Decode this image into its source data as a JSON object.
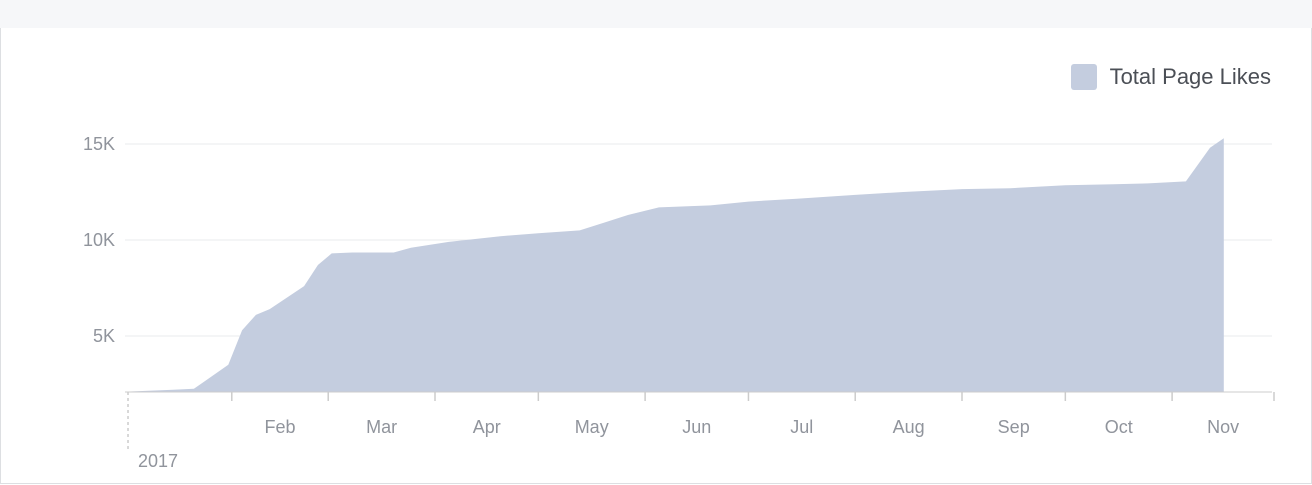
{
  "chart_data": {
    "type": "area",
    "title": "",
    "xlabel": "",
    "ylabel": "",
    "legend": {
      "position": "top-right",
      "label": "Total Page Likes"
    },
    "colors": {
      "area": "#c4cddf",
      "grid": "#e9ebee",
      "axis": "#cccccc",
      "tick_text": "#90949c"
    },
    "grid": true,
    "ylim": [
      0,
      15500
    ],
    "y_ticks": [
      {
        "value": 5000,
        "label": "5K"
      },
      {
        "value": 10000,
        "label": "10K"
      },
      {
        "value": 15000,
        "label": "15K"
      }
    ],
    "x_domain": [
      "2017-01-01",
      "2017-11-30"
    ],
    "x_ticks": [
      {
        "date": "2017-02-01",
        "label": "Feb"
      },
      {
        "date": "2017-03-01",
        "label": "Mar"
      },
      {
        "date": "2017-04-01",
        "label": "Apr"
      },
      {
        "date": "2017-05-01",
        "label": "May"
      },
      {
        "date": "2017-06-01",
        "label": "Jun"
      },
      {
        "date": "2017-07-01",
        "label": "Jul"
      },
      {
        "date": "2017-08-01",
        "label": "Aug"
      },
      {
        "date": "2017-09-01",
        "label": "Sep"
      },
      {
        "date": "2017-10-01",
        "label": "Oct"
      },
      {
        "date": "2017-11-01",
        "label": "Nov"
      }
    ],
    "year_label": "2017",
    "series": [
      {
        "name": "Total Page Likes",
        "points": [
          {
            "x": "2017-01-01",
            "y": 2100
          },
          {
            "x": "2017-01-15",
            "y": 2200
          },
          {
            "x": "2017-01-21",
            "y": 2250
          },
          {
            "x": "2017-01-31",
            "y": 3500
          },
          {
            "x": "2017-02-04",
            "y": 5300
          },
          {
            "x": "2017-02-08",
            "y": 6100
          },
          {
            "x": "2017-02-12",
            "y": 6400
          },
          {
            "x": "2017-02-22",
            "y": 7600
          },
          {
            "x": "2017-02-26",
            "y": 8700
          },
          {
            "x": "2017-03-02",
            "y": 9300
          },
          {
            "x": "2017-03-08",
            "y": 9350
          },
          {
            "x": "2017-03-20",
            "y": 9350
          },
          {
            "x": "2017-03-25",
            "y": 9600
          },
          {
            "x": "2017-04-05",
            "y": 9900
          },
          {
            "x": "2017-04-20",
            "y": 10200
          },
          {
            "x": "2017-05-01",
            "y": 10350
          },
          {
            "x": "2017-05-13",
            "y": 10500
          },
          {
            "x": "2017-05-20",
            "y": 10900
          },
          {
            "x": "2017-05-27",
            "y": 11300
          },
          {
            "x": "2017-06-05",
            "y": 11700
          },
          {
            "x": "2017-06-20",
            "y": 11800
          },
          {
            "x": "2017-07-01",
            "y": 12000
          },
          {
            "x": "2017-07-15",
            "y": 12150
          },
          {
            "x": "2017-08-01",
            "y": 12350
          },
          {
            "x": "2017-08-15",
            "y": 12500
          },
          {
            "x": "2017-09-01",
            "y": 12650
          },
          {
            "x": "2017-09-15",
            "y": 12700
          },
          {
            "x": "2017-10-01",
            "y": 12850
          },
          {
            "x": "2017-10-15",
            "y": 12900
          },
          {
            "x": "2017-10-25",
            "y": 12950
          },
          {
            "x": "2017-11-05",
            "y": 13050
          },
          {
            "x": "2017-11-12",
            "y": 14800
          },
          {
            "x": "2017-11-16",
            "y": 15300
          }
        ]
      }
    ]
  }
}
